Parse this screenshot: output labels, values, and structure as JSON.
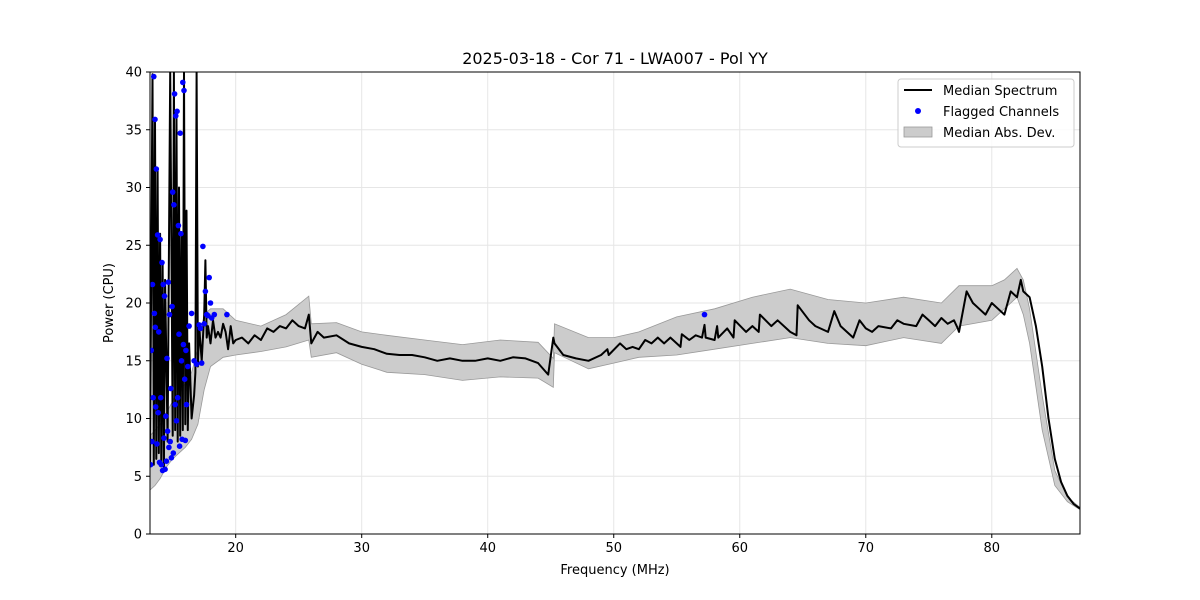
{
  "chart_data": {
    "type": "line",
    "title": "2025-03-18 - Cor 71 - LWA007 - Pol YY",
    "xlabel": "Frequency (MHz)",
    "ylabel": "Power (CPU)",
    "xlim": [
      13.2,
      87.0
    ],
    "ylim": [
      0,
      40
    ],
    "xticks": [
      20,
      30,
      40,
      50,
      60,
      70,
      80
    ],
    "yticks": [
      0,
      5,
      10,
      15,
      20,
      25,
      30,
      35,
      40
    ],
    "grid": true,
    "legend_position": "top-right",
    "legend": {
      "median": "Median Spectrum",
      "flagged": "Flagged Channels",
      "mad": "Median Abs. Dev."
    },
    "colors": {
      "median": "#000000",
      "flagged": "#0000ff",
      "mad_fill": "#cccccc",
      "mad_edge": "#999999",
      "grid": "#e6e6e6"
    },
    "series": [
      {
        "name": "Median Spectrum",
        "x": [
          13.2,
          13.4,
          13.5,
          13.6,
          13.7,
          13.8,
          13.9,
          14.0,
          14.1,
          14.2,
          14.3,
          14.4,
          14.6,
          14.8,
          15.0,
          15.1,
          15.2,
          15.3,
          15.4,
          15.5,
          15.6,
          15.7,
          15.8,
          15.9,
          16.0,
          16.1,
          16.2,
          16.3,
          16.5,
          16.7,
          16.8,
          16.9,
          17.0,
          17.1,
          17.3,
          17.5,
          17.6,
          17.7,
          17.8,
          18.0,
          18.2,
          18.4,
          18.6,
          18.8,
          19.0,
          19.2,
          19.4,
          19.6,
          19.8,
          20.0,
          20.5,
          21.0,
          21.5,
          22.0,
          22.5,
          23.0,
          23.5,
          24.0,
          24.5,
          25.0,
          25.5,
          25.8,
          26.0,
          26.5,
          27.0,
          28.0,
          29.0,
          30.0,
          31.0,
          32.0,
          33.0,
          34.0,
          35.0,
          36.0,
          37.0,
          38.0,
          39.0,
          40.0,
          41.0,
          42.0,
          43.0,
          44.0,
          44.8,
          45.2,
          45.3,
          46.0,
          47.0,
          48.0,
          49.0,
          49.5,
          49.6,
          50.5,
          51.0,
          51.5,
          52.0,
          52.5,
          53.0,
          53.5,
          54.0,
          54.5,
          55.0,
          55.3,
          55.4,
          56.0,
          56.5,
          57.0,
          57.2,
          57.3,
          58.0,
          58.2,
          58.3,
          59.0,
          59.5,
          59.6,
          60.5,
          61.0,
          61.5,
          61.6,
          62.5,
          63.0,
          64.0,
          64.5,
          64.6,
          65.5,
          66.0,
          67.0,
          67.5,
          68.0,
          68.5,
          69.0,
          69.5,
          70.0,
          70.5,
          71.0,
          72.0,
          72.5,
          73.0,
          74.0,
          74.5,
          75.0,
          75.5,
          76.0,
          76.5,
          77.0,
          77.3,
          77.4,
          78.0,
          78.5,
          79.0,
          79.5,
          80.0,
          80.5,
          81.0,
          81.5,
          82.0,
          82.3,
          82.5,
          83.0,
          83.5,
          84.0,
          84.5,
          85.0,
          85.5,
          86.0,
          86.5,
          87.0
        ],
        "y": [
          5.8,
          39.8,
          6.0,
          36.0,
          6.5,
          31.5,
          7.0,
          26.0,
          6.0,
          23.5,
          5.5,
          22.0,
          8.0,
          40.0,
          8.5,
          40.0,
          9.0,
          36.0,
          8.0,
          30.0,
          8.5,
          26.0,
          9.0,
          40.0,
          9.5,
          28.0,
          9.0,
          16.5,
          10.0,
          12.0,
          14.0,
          40.0,
          14.5,
          18.0,
          15.0,
          19.0,
          23.7,
          17.0,
          18.0,
          16.5,
          18.5,
          17.0,
          17.5,
          17.0,
          18.2,
          17.5,
          16.0,
          18.0,
          16.5,
          16.8,
          17.0,
          16.5,
          17.2,
          16.8,
          17.8,
          17.5,
          18.0,
          17.8,
          18.5,
          18.0,
          17.8,
          19.0,
          16.5,
          17.5,
          17.0,
          17.2,
          16.5,
          16.2,
          16.0,
          15.6,
          15.5,
          15.5,
          15.3,
          15.0,
          15.2,
          15.0,
          15.0,
          15.2,
          15.0,
          15.3,
          15.2,
          14.8,
          13.8,
          17.0,
          16.5,
          15.5,
          15.2,
          15.0,
          15.5,
          16.0,
          15.5,
          16.5,
          16.0,
          16.2,
          16.0,
          16.8,
          16.5,
          17.0,
          16.5,
          17.0,
          16.5,
          16.2,
          17.3,
          16.8,
          17.2,
          17.0,
          18.1,
          17.0,
          16.8,
          18.0,
          17.0,
          17.8,
          17.0,
          18.5,
          17.5,
          18.0,
          17.5,
          19.0,
          18.0,
          18.5,
          17.5,
          17.2,
          19.8,
          18.5,
          18.0,
          17.5,
          19.3,
          18.0,
          17.5,
          17.0,
          18.5,
          17.8,
          17.5,
          18.0,
          17.8,
          18.5,
          18.2,
          18.0,
          19.0,
          18.5,
          18.0,
          18.7,
          18.2,
          18.5,
          17.8,
          17.5,
          21.0,
          20.0,
          19.5,
          19.0,
          20.0,
          19.5,
          19.0,
          21.0,
          20.5,
          22.0,
          21.0,
          20.5,
          18.0,
          14.5,
          10.0,
          6.5,
          4.5,
          3.3,
          2.6,
          2.2
        ]
      }
    ],
    "band": {
      "name": "Median Abs. Dev.",
      "x": [
        13.2,
        13.6,
        14.0,
        14.5,
        15.0,
        15.5,
        16.0,
        16.5,
        17.0,
        17.5,
        18.0,
        19.0,
        20.0,
        22.0,
        24.0,
        25.8,
        26.0,
        28.0,
        30.0,
        32.0,
        35.0,
        38.0,
        41.0,
        44.0,
        45.2,
        45.3,
        48.0,
        50.0,
        52.0,
        55.0,
        58.0,
        61.0,
        64.0,
        67.0,
        70.0,
        73.0,
        76.0,
        77.4,
        80.0,
        81.0,
        82.0,
        82.5,
        83.0,
        84.0,
        85.0,
        86.0,
        87.0
      ],
      "lower": [
        3.8,
        4.2,
        4.8,
        5.8,
        6.5,
        7.0,
        7.5,
        8.2,
        9.5,
        12.5,
        14.5,
        15.3,
        15.5,
        15.8,
        16.2,
        16.8,
        15.3,
        15.7,
        14.7,
        14.0,
        13.8,
        13.3,
        13.6,
        13.5,
        12.7,
        15.7,
        14.3,
        14.8,
        15.3,
        15.5,
        16.0,
        16.5,
        17.0,
        16.5,
        16.3,
        17.0,
        16.5,
        18.0,
        18.5,
        19.5,
        20.5,
        19.0,
        16.5,
        9.0,
        4.2,
        2.8,
        2.1
      ],
      "upper": [
        8.5,
        9.0,
        9.5,
        10.5,
        11.5,
        12.5,
        13.0,
        14.0,
        16.0,
        19.0,
        19.5,
        19.5,
        18.5,
        18.0,
        19.0,
        20.6,
        18.2,
        18.3,
        17.5,
        17.2,
        16.8,
        16.4,
        16.8,
        16.6,
        15.2,
        18.2,
        17.0,
        17.0,
        17.5,
        18.8,
        19.5,
        20.5,
        21.2,
        20.3,
        20.0,
        20.5,
        20.0,
        21.5,
        21.5,
        22.0,
        23.0,
        22.0,
        19.5,
        12.0,
        5.5,
        3.2,
        2.3
      ]
    },
    "flagged_channels": {
      "name": "Flagged Channels",
      "x": [
        13.25,
        13.3,
        13.35,
        13.4,
        13.45,
        13.5,
        13.55,
        13.6,
        13.62,
        13.65,
        13.7,
        13.75,
        13.8,
        13.85,
        13.9,
        13.95,
        14.0,
        14.05,
        14.1,
        14.15,
        14.2,
        14.25,
        14.3,
        14.35,
        14.4,
        14.45,
        14.5,
        14.55,
        14.6,
        14.65,
        14.7,
        14.75,
        14.8,
        14.85,
        14.9,
        14.95,
        15.0,
        15.05,
        15.1,
        15.15,
        15.2,
        15.25,
        15.3,
        15.35,
        15.4,
        15.45,
        15.5,
        15.55,
        15.6,
        15.65,
        15.7,
        15.75,
        15.8,
        15.85,
        15.9,
        15.95,
        16.0,
        16.05,
        16.1,
        16.2,
        16.3,
        16.5,
        16.7,
        16.9,
        17.1,
        17.2,
        17.3,
        17.4,
        17.5,
        17.6,
        17.7,
        17.8,
        17.9,
        18.0,
        18.1,
        18.3,
        19.3,
        57.2
      ],
      "y": [
        6.0,
        15.9,
        8.0,
        21.6,
        11.8,
        39.6,
        19.1,
        35.9,
        17.9,
        11.0,
        31.6,
        7.8,
        25.9,
        10.5,
        17.5,
        6.2,
        25.5,
        11.8,
        6.0,
        23.5,
        5.5,
        21.6,
        8.3,
        20.6,
        5.6,
        10.2,
        6.3,
        15.2,
        8.9,
        21.8,
        7.5,
        19.0,
        8.0,
        12.6,
        6.6,
        19.7,
        29.6,
        7.0,
        28.5,
        38.1,
        11.2,
        36.2,
        9.8,
        36.6,
        11.8,
        26.7,
        17.3,
        7.6,
        34.7,
        26.0,
        15.0,
        8.2,
        39.1,
        16.4,
        38.4,
        13.4,
        8.1,
        15.9,
        11.2,
        14.5,
        18.0,
        19.1,
        15.0,
        14.7,
        18.1,
        17.8,
        14.8,
        24.9,
        18.2,
        21.0,
        19.0,
        18.9,
        22.2,
        20.0,
        18.7,
        19.0,
        19.0,
        19.0
      ]
    }
  }
}
